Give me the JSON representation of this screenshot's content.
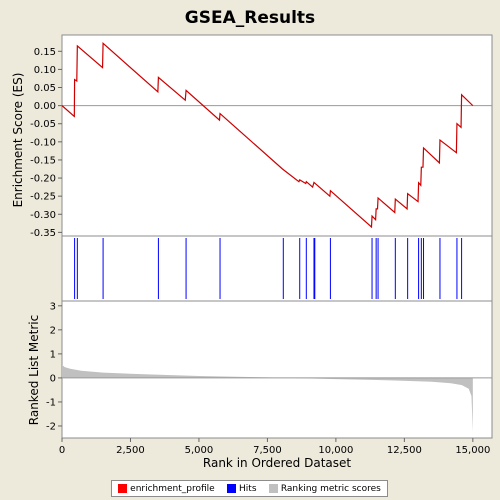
{
  "chart_data": {
    "type": "line",
    "title": "GSEA_Results",
    "xlabel": "Rank in Ordered Dataset",
    "x_range": [
      0,
      15700
    ],
    "x_ticks": [
      0,
      2500,
      5000,
      7500,
      10000,
      12500,
      15000
    ],
    "x_tick_labels": [
      "0",
      "2,500",
      "5,000",
      "7,500",
      "10,000",
      "12,500",
      "15,000"
    ],
    "n_genes": 15000,
    "enrichment_panel": {
      "ylabel": "Enrichment Score (ES)",
      "ylim": [
        -0.36,
        0.195
      ],
      "y_ticks": [
        0.15,
        0.1,
        0.05,
        0.0,
        -0.05,
        -0.1,
        -0.15,
        -0.2,
        -0.25,
        -0.3,
        -0.35
      ],
      "y_tick_labels": [
        "0.15",
        "0.10",
        "0.05",
        "0.00",
        "-0.05",
        "-0.10",
        "-0.15",
        "-0.20",
        "-0.25",
        "-0.30",
        "-0.35"
      ],
      "zero_line": true,
      "line_color": "#cc0000",
      "points": [
        [
          0,
          0.0
        ],
        [
          450,
          -0.03
        ],
        [
          460,
          0.072
        ],
        [
          540,
          0.068
        ],
        [
          560,
          0.165
        ],
        [
          1480,
          0.105
        ],
        [
          1500,
          0.172
        ],
        [
          3500,
          0.038
        ],
        [
          3520,
          0.078
        ],
        [
          4500,
          0.015
        ],
        [
          4530,
          0.042
        ],
        [
          5750,
          -0.04
        ],
        [
          5770,
          -0.022
        ],
        [
          8050,
          -0.175
        ],
        [
          8650,
          -0.21
        ],
        [
          8680,
          -0.205
        ],
        [
          8900,
          -0.215
        ],
        [
          8920,
          -0.21
        ],
        [
          9150,
          -0.225
        ],
        [
          9200,
          -0.212
        ],
        [
          9780,
          -0.25
        ],
        [
          9800,
          -0.235
        ],
        [
          11300,
          -0.335
        ],
        [
          11320,
          -0.305
        ],
        [
          11450,
          -0.315
        ],
        [
          11470,
          -0.285
        ],
        [
          11520,
          -0.285
        ],
        [
          11540,
          -0.255
        ],
        [
          12150,
          -0.295
        ],
        [
          12170,
          -0.258
        ],
        [
          12600,
          -0.285
        ],
        [
          12620,
          -0.243
        ],
        [
          13000,
          -0.265
        ],
        [
          13020,
          -0.213
        ],
        [
          13100,
          -0.22
        ],
        [
          13120,
          -0.17
        ],
        [
          13180,
          -0.17
        ],
        [
          13200,
          -0.117
        ],
        [
          13780,
          -0.158
        ],
        [
          13800,
          -0.095
        ],
        [
          14400,
          -0.13
        ],
        [
          14420,
          -0.05
        ],
        [
          14570,
          -0.06
        ],
        [
          14590,
          0.03
        ],
        [
          15000,
          0.0
        ]
      ]
    },
    "hits_panel": {
      "color": "#0000ff",
      "hits": [
        460,
        560,
        1500,
        3520,
        4530,
        5770,
        8080,
        8680,
        8920,
        9200,
        9230,
        9800,
        11320,
        11470,
        11540,
        12170,
        12620,
        13020,
        13120,
        13200,
        13800,
        14420,
        14590
      ]
    },
    "ranking_panel": {
      "ylabel": "Ranked List Metric",
      "ylim": [
        -2.5,
        3.2
      ],
      "y_ticks": [
        3,
        2,
        1,
        0,
        -1,
        -2
      ],
      "y_tick_labels": [
        "3",
        "2",
        "1",
        "0",
        "-1",
        "-2"
      ],
      "fill_color": "#c0c0c0",
      "profile": [
        [
          0,
          0.55
        ],
        [
          100,
          0.45
        ],
        [
          300,
          0.38
        ],
        [
          700,
          0.3
        ],
        [
          1500,
          0.22
        ],
        [
          3000,
          0.15
        ],
        [
          5000,
          0.08
        ],
        [
          7500,
          0.02
        ],
        [
          8200,
          0.0
        ],
        [
          10000,
          -0.05
        ],
        [
          12000,
          -0.1
        ],
        [
          13500,
          -0.16
        ],
        [
          14200,
          -0.22
        ],
        [
          14600,
          -0.3
        ],
        [
          14850,
          -0.45
        ],
        [
          14950,
          -0.75
        ],
        [
          15000,
          -2.25
        ]
      ]
    },
    "legend": {
      "placement": "bottom",
      "items": [
        {
          "label": "enrichment_profile",
          "color": "#ff0000"
        },
        {
          "label": "Hits",
          "color": "#0000ff"
        },
        {
          "label": "Ranking metric scores",
          "color": "#c0c0c0"
        }
      ]
    }
  }
}
